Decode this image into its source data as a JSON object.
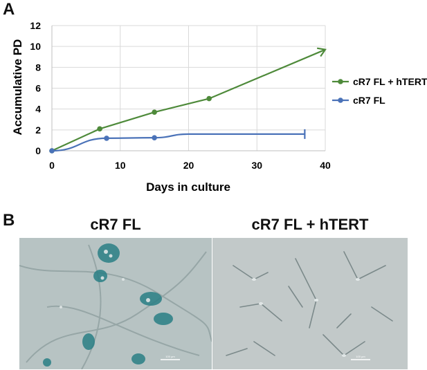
{
  "panels": {
    "a": "A",
    "b": "B"
  },
  "chart_data": {
    "type": "line",
    "title": "",
    "xlabel": "Days in culture",
    "ylabel": "Accumulative PD",
    "xlim": [
      0,
      40
    ],
    "ylim": [
      0,
      12
    ],
    "xticks": [
      0,
      10,
      20,
      30,
      40
    ],
    "yticks": [
      0,
      2,
      4,
      6,
      8,
      10,
      12
    ],
    "grid": true,
    "legend_position": "right",
    "series": [
      {
        "name": "cR7 FL + hTERT",
        "color": "#4e8a3a",
        "x": [
          0,
          7,
          15,
          23
        ],
        "y": [
          0,
          2.1,
          3.7,
          5.0
        ],
        "trend": {
          "x": [
            23,
            40
          ],
          "y": [
            5.0,
            9.7
          ]
        },
        "end_marker": "arrow"
      },
      {
        "name": "cR7 FL",
        "color": "#4a72b8",
        "x": [
          0,
          8,
          15
        ],
        "y": [
          0,
          1.2,
          1.25
        ],
        "trend": {
          "x": [
            15,
            20,
            37
          ],
          "y": [
            1.25,
            1.6,
            1.6
          ]
        },
        "end_marker": "bar"
      }
    ]
  },
  "images": [
    {
      "title": "cR7 FL",
      "scale": "100 µm"
    },
    {
      "title": "cR7 FL + hTERT",
      "scale": "100 µm"
    }
  ]
}
